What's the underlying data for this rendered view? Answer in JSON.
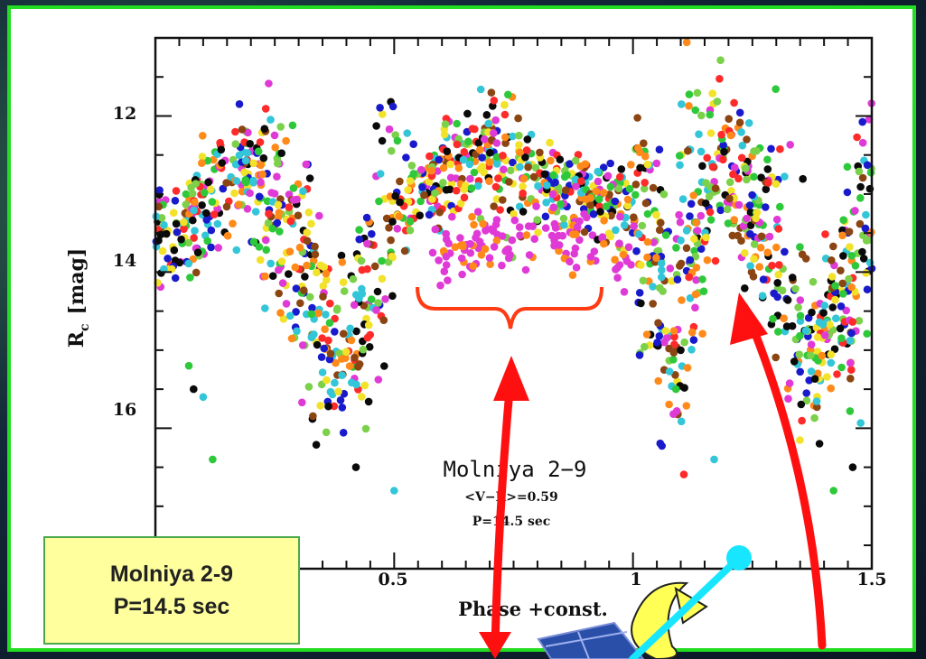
{
  "callout": {
    "line1": "Molniya 2-9",
    "line2": "P=14.5 sec"
  },
  "chart_data": {
    "type": "scatter",
    "title": "Molniya 2-9",
    "annotations": [
      "Molniya 2−9",
      "<V−R>=0.59",
      "P=14.5 sec"
    ],
    "xlabel": "Phase +const.",
    "ylabel": "R",
    "ylabel_subscript": "c",
    "ylabel_unit": "[mag]",
    "xlim": [
      0.0,
      1.5
    ],
    "ylim": [
      17.8,
      11.0
    ],
    "y_inverted": true,
    "x_ticks": [
      "0.5",
      "1",
      "1.5"
    ],
    "x_tick_values": [
      0.5,
      1.0,
      1.5
    ],
    "y_ticks": [
      "12",
      "14",
      "16"
    ],
    "y_tick_values": [
      12,
      14,
      16
    ],
    "grid": false,
    "light_curve_knots": {
      "x": [
        0.0,
        0.1,
        0.19,
        0.29,
        0.37,
        0.44,
        0.5,
        0.55,
        0.6,
        0.65,
        0.7,
        0.75,
        0.8,
        0.85,
        0.9,
        0.95,
        1.0,
        1.05,
        1.09,
        1.12,
        1.19,
        1.29,
        1.37,
        1.44,
        1.5
      ],
      "y": [
        13.6,
        13.2,
        12.6,
        13.6,
        15.1,
        14.4,
        13.2,
        13.0,
        12.85,
        12.55,
        12.4,
        12.7,
        12.95,
        13.0,
        13.05,
        13.1,
        13.2,
        14.1,
        15.0,
        13.6,
        12.6,
        13.6,
        15.1,
        14.4,
        13.2
      ]
    },
    "secondary_branch": {
      "x": [
        0.6,
        0.7,
        0.8,
        0.9,
        1.0
      ],
      "y": [
        13.8,
        13.6,
        13.5,
        13.65,
        13.9
      ]
    },
    "outliers": {
      "x": [
        0.07,
        0.08,
        0.1,
        0.12,
        0.42,
        0.5,
        1.09,
        1.1,
        1.17,
        1.42,
        1.46
      ],
      "y": [
        15.2,
        15.5,
        15.6,
        16.4,
        16.5,
        16.8,
        15.5,
        15.0,
        16.4,
        16.8,
        16.5
      ]
    },
    "colors": [
      "#0a0a0a",
      "#1a1acd",
      "#e03ad6",
      "#32c6d8",
      "#2ec93a",
      "#f2e22a",
      "#ff8a1a",
      "#ff2a2a",
      "#8b4513",
      "#7bd14a"
    ],
    "overlays": {
      "brace_color": "#ff3b14",
      "arrow_color": "#ff1010",
      "rotation_arrow_color": "#ffff33",
      "antenna_color": "#18e6ff"
    }
  }
}
